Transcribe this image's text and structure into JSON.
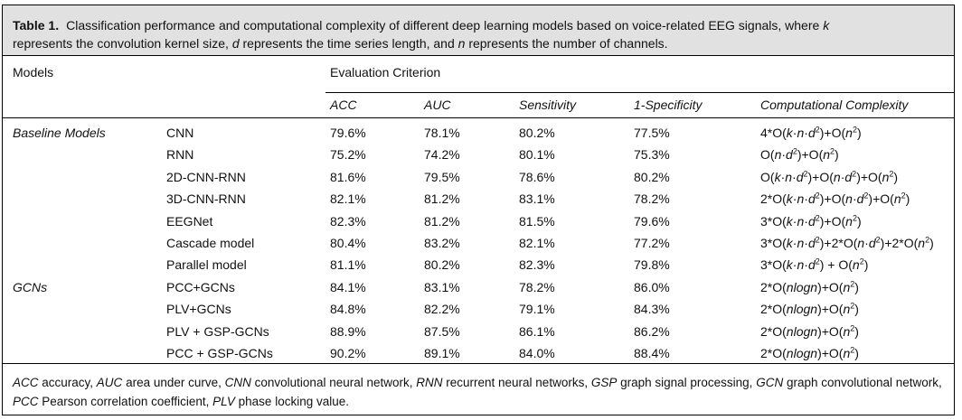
{
  "caption": {
    "label": "Table 1.",
    "text_1": "Classification performance and computational complexity of different deep learning models based on voice-related EEG signals, where ",
    "k": "k",
    "text_2": " represents the convolution kernel size, ",
    "d": "d",
    "text_3": " represents the time series length, and ",
    "n": "n",
    "text_4": " represents the number of channels."
  },
  "header": {
    "models": "Models",
    "evaluation": "Evaluation Criterion",
    "columns": [
      "ACC",
      "AUC",
      "Sensitivity",
      "1-Specificity",
      "Computational Complexity"
    ]
  },
  "groups": [
    "Baseline Models",
    "GCNs"
  ],
  "rows": [
    {
      "model": "CNN",
      "acc": "79.6%",
      "auc": "78.1%",
      "sens": "80.2%",
      "spec": "77.5%",
      "cx": "4*O(k·n·d²)+O(n²)"
    },
    {
      "model": "RNN",
      "acc": "75.2%",
      "auc": "74.2%",
      "sens": "80.1%",
      "spec": "75.3%",
      "cx": "O(n·d²)+O(n²)"
    },
    {
      "model": "2D-CNN-RNN",
      "acc": "81.6%",
      "auc": "79.5%",
      "sens": "78.6%",
      "spec": "80.2%",
      "cx": "O(k·n·d²)+O(n·d²)+O(n²)"
    },
    {
      "model": "3D-CNN-RNN",
      "acc": "82.1%",
      "auc": "81.2%",
      "sens": "83.1%",
      "spec": "78.2%",
      "cx": "2*O(k·n·d²)+O(n·d²)+O(n²)"
    },
    {
      "model": "EEGNet",
      "acc": "82.3%",
      "auc": "81.2%",
      "sens": "81.5%",
      "spec": "79.6%",
      "cx": "3*O(k·n·d²)+O(n²)"
    },
    {
      "model": "Cascade model",
      "acc": "80.4%",
      "auc": "83.2%",
      "sens": "82.1%",
      "spec": "77.2%",
      "cx": "3*O(k·n·d²)+2*O(n·d²)+2*O(n²)"
    },
    {
      "model": "Parallel model",
      "acc": "81.1%",
      "auc": "80.2%",
      "sens": "82.3%",
      "spec": "79.8%",
      "cx": "3*O(k·n·d²) + O(n²)"
    },
    {
      "model": "PCC+GCNs",
      "acc": "84.1%",
      "auc": "83.1%",
      "sens": "78.2%",
      "spec": "86.0%",
      "cx": "2*O(nlogn)+O(n²)"
    },
    {
      "model": "PLV+GCNs",
      "acc": "84.8%",
      "auc": "82.2%",
      "sens": "79.1%",
      "spec": "84.3%",
      "cx": "2*O(nlogn)+O(n²)"
    },
    {
      "model": "PLV + GSP-GCNs",
      "acc": "88.9%",
      "auc": "87.5%",
      "sens": "86.1%",
      "spec": "86.2%",
      "cx": "2*O(nlogn)+O(n²)"
    },
    {
      "model": "PCC + GSP-GCNs",
      "acc": "90.2%",
      "auc": "89.1%",
      "sens": "84.0%",
      "spec": "88.4%",
      "cx": "2*O(nlogn)+O(n²)"
    }
  ],
  "footnote": [
    {
      "term": "ACC",
      "def": " accuracy, "
    },
    {
      "term": "AUC",
      "def": " area under curve, "
    },
    {
      "term": "CNN",
      "def": " convolutional neural network, "
    },
    {
      "term": "RNN",
      "def": " recurrent neural networks, "
    },
    {
      "term": "GSP",
      "def": " graph signal processing, "
    },
    {
      "term": "GCN",
      "def": " graph convolutional network, "
    },
    {
      "term": "PCC",
      "def": " Pearson correlation coefficient, "
    },
    {
      "term": "PLV",
      "def": " phase locking value."
    }
  ]
}
